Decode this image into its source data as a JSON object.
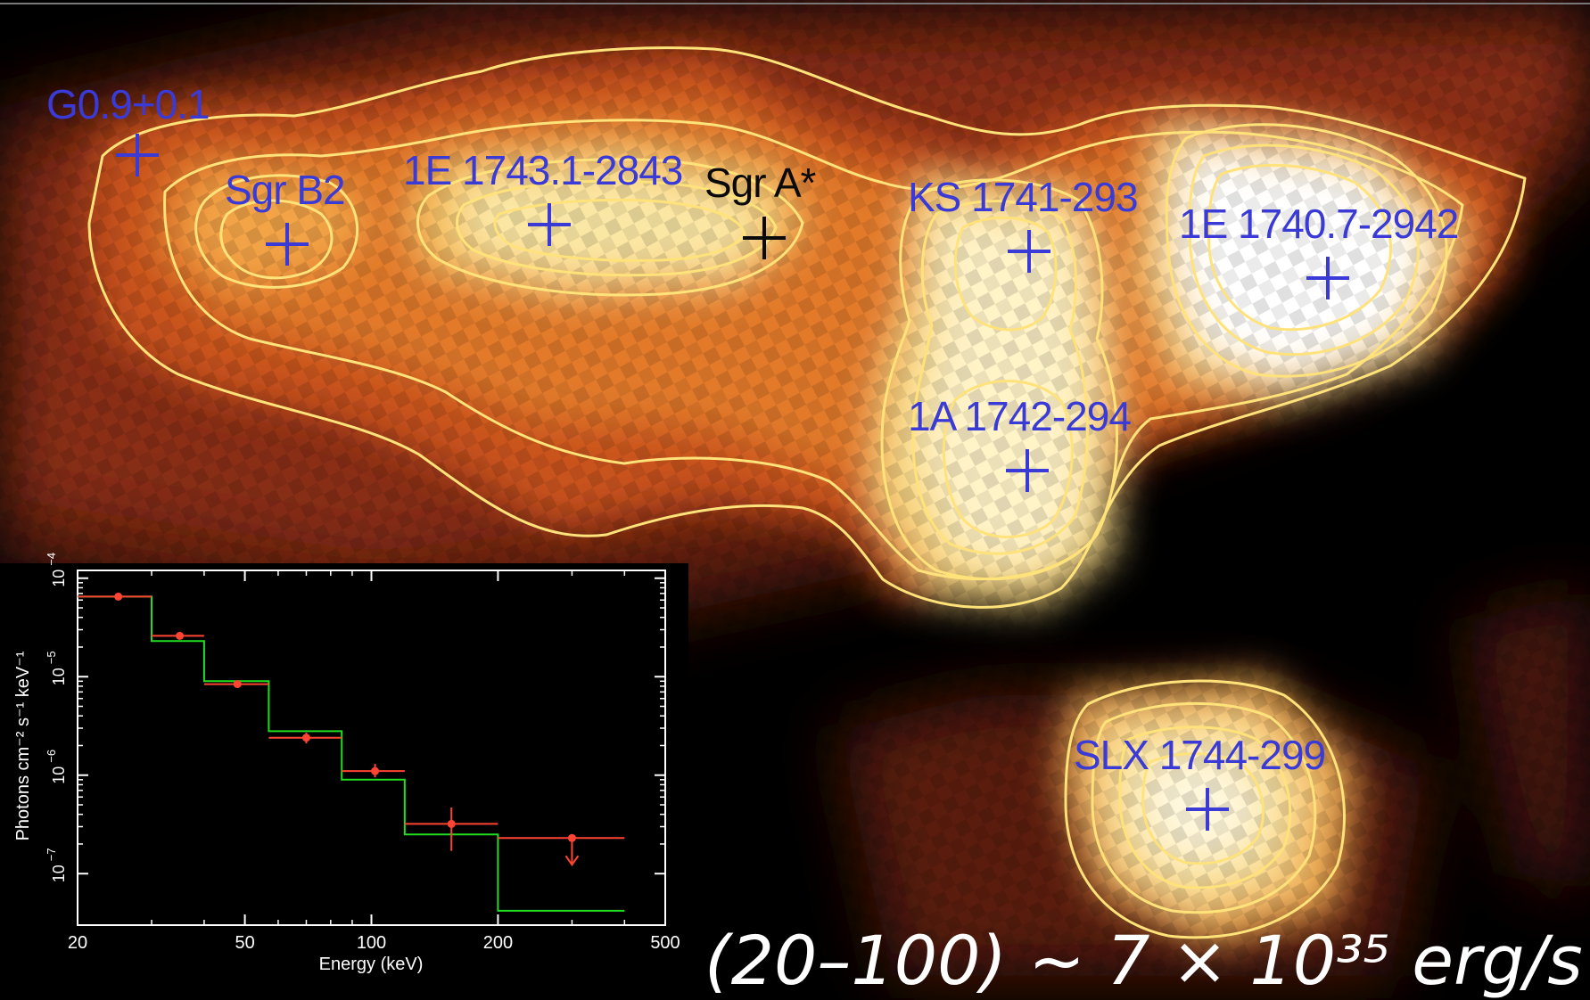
{
  "colors": {
    "blue_label": "#3a3ad6",
    "black_label": "#0a0a0a",
    "contour": "#ffe27a",
    "model": "#22dd22",
    "data": "#ff4433"
  },
  "sources": [
    {
      "name": "G0.9+0.1",
      "color": "blue"
    },
    {
      "name": "Sgr B2",
      "color": "blue"
    },
    {
      "name": "1E 1743.1-2843",
      "color": "blue"
    },
    {
      "name": "Sgr A*",
      "color": "black"
    },
    {
      "name": "KS 1741-293",
      "color": "blue"
    },
    {
      "name": "1E 1740.7-2942",
      "color": "blue"
    },
    {
      "name": "1A 1742-294",
      "color": "blue"
    },
    {
      "name": "SLX 1744-299",
      "color": "blue"
    }
  ],
  "chart_data": {
    "type": "scatter",
    "xlabel": "Energy (keV)",
    "ylabel": "Photons cm⁻² s⁻¹ keV⁻¹",
    "xlim": [
      20,
      500
    ],
    "ylim": [
      3e-08,
      0.00012
    ],
    "xscale": "log",
    "yscale": "log",
    "xticks": [
      "20",
      "50",
      "100",
      "200",
      "500"
    ],
    "yticks": [
      {
        "base": "10",
        "exp": "−4",
        "value": 0.0001
      },
      {
        "base": "10",
        "exp": "−5",
        "value": 1e-05
      },
      {
        "base": "10",
        "exp": "−6",
        "value": 1e-06
      },
      {
        "base": "10",
        "exp": "−7",
        "value": 1e-07
      }
    ],
    "series": [
      {
        "kind": "model-step",
        "color": "#22dd22",
        "bins": [
          [
            20,
            30,
            6.5e-05
          ],
          [
            30,
            40,
            2.3e-05
          ],
          [
            40,
            57,
            9e-06
          ],
          [
            57,
            85,
            2.8e-06
          ],
          [
            85,
            120,
            9e-07
          ],
          [
            120,
            200,
            2.5e-07
          ],
          [
            200,
            400,
            4.2e-08
          ]
        ]
      },
      {
        "kind": "data",
        "color": "#ff4433",
        "points": [
          {
            "x": 25,
            "y": 6.5e-05,
            "xlo": 20,
            "xhi": 30,
            "ylo": 6.2e-05,
            "yhi": 6.9e-05
          },
          {
            "x": 35,
            "y": 2.6e-05,
            "xlo": 30,
            "xhi": 40,
            "ylo": 2.45e-05,
            "yhi": 2.75e-05
          },
          {
            "x": 48,
            "y": 8.4e-06,
            "xlo": 40,
            "xhi": 57,
            "ylo": 7.8e-06,
            "yhi": 9e-06
          },
          {
            "x": 70,
            "y": 2.4e-06,
            "xlo": 57,
            "xhi": 85,
            "ylo": 2.1e-06,
            "yhi": 2.7e-06
          },
          {
            "x": 102,
            "y": 1.1e-06,
            "xlo": 85,
            "xhi": 120,
            "ylo": 9.5e-07,
            "yhi": 1.3e-06
          },
          {
            "x": 155,
            "y": 3.2e-07,
            "xlo": 120,
            "xhi": 200,
            "ylo": 1.7e-07,
            "yhi": 4.7e-07
          },
          {
            "x": 300,
            "y": 2.3e-07,
            "xlo": 200,
            "xhi": 400,
            "upper_limit": true
          }
        ]
      }
    ]
  },
  "bottom_text": "(20–100) ~ 7 × 10³⁵ erg/s"
}
